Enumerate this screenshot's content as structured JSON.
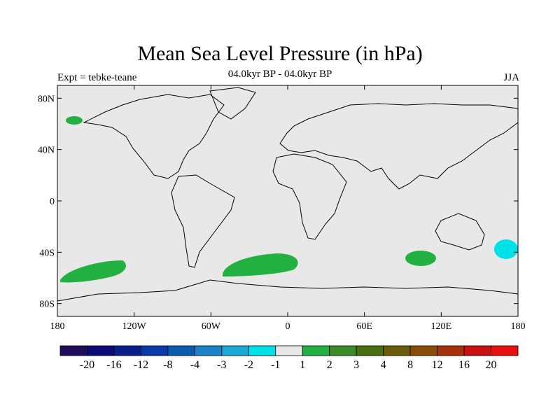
{
  "title": "Mean Sea Level Pressure (in hPa)",
  "subtitle": "04.0kyr BP - 04.0kyr BP",
  "left_label": "Expt = tebke-teane",
  "right_label": "JJA",
  "lat_ticks": [
    "80N",
    "40N",
    "0",
    "40S",
    "80S"
  ],
  "lon_ticks": [
    "180",
    "120W",
    "60W",
    "0",
    "60E",
    "120E",
    "180"
  ],
  "colorbar": {
    "colors": [
      "#1f0a5c",
      "#0a0a7a",
      "#0a1f8c",
      "#0a3aa8",
      "#0a5cb0",
      "#1a82c8",
      "#19a8d8",
      "#00e0e8",
      "#e8e8e8",
      "#22b040",
      "#3a8a2a",
      "#4a6e10",
      "#6a5a0a",
      "#8a4a0a",
      "#a8300a",
      "#c81010",
      "#e81010"
    ],
    "labels": [
      "-20",
      "-16",
      "-12",
      "-8",
      "-4",
      "-3",
      "-2",
      "-1",
      "1",
      "2",
      "3",
      "4",
      "8",
      "12",
      "16",
      "20"
    ]
  },
  "chart_data": {
    "type": "map",
    "title": "Mean Sea Level Pressure (in hPa)",
    "projection": "cylindrical equidistant",
    "x_range": [
      -180,
      180
    ],
    "y_range": [
      -90,
      90
    ],
    "anomalies": [
      {
        "region": "Alaska",
        "center_lon": -170,
        "center_lat": 63,
        "category": "1 to 2"
      },
      {
        "region": "South Pacific",
        "center_lon": -143,
        "center_lat": -53,
        "category": "1 to 2"
      },
      {
        "region": "South Atlantic",
        "center_lon": -17,
        "center_lat": -50,
        "category": "1 to 2"
      },
      {
        "region": "South Indian Ocean",
        "center_lon": 104,
        "center_lat": -45,
        "category": "1 to 2"
      },
      {
        "region": "New Zealand",
        "center_lon": 171,
        "center_lat": -38,
        "category": "-2 to -1"
      }
    ]
  }
}
